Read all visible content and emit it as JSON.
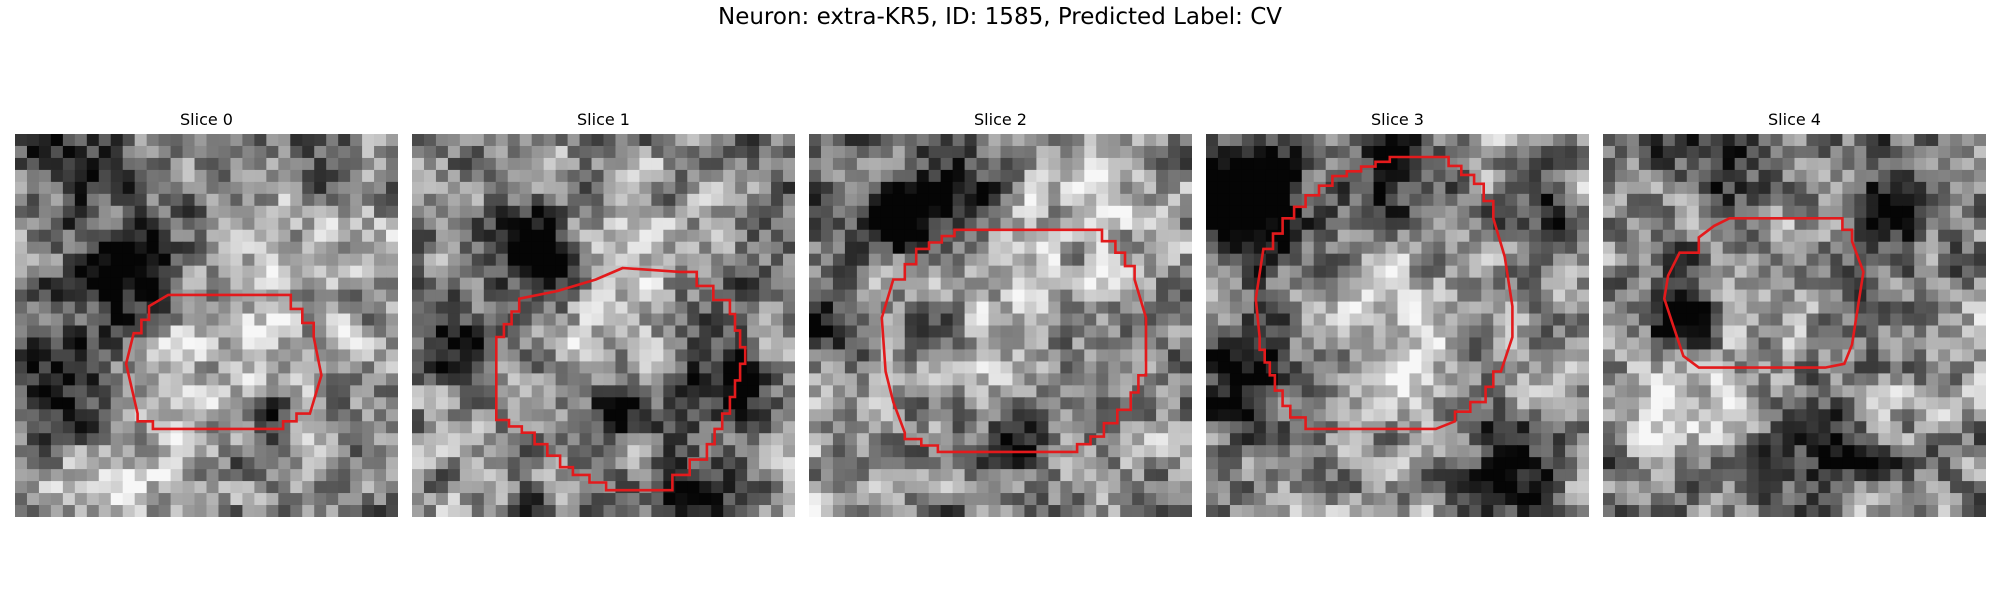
{
  "figure": {
    "title": "Neuron: extra-KR5, ID: 1585, Predicted Label: CV"
  },
  "colors": {
    "contour": "#e31a1c"
  },
  "panels": [
    {
      "title": "Slice 0",
      "seed": 11,
      "dark_blobs": [
        [
          0.3,
          0.35,
          0.12,
          0.75
        ],
        [
          0.1,
          0.65,
          0.18,
          0.55
        ],
        [
          0.67,
          0.73,
          0.06,
          0.55
        ],
        [
          0.15,
          0.1,
          0.15,
          0.3
        ]
      ],
      "bright_blobs": [
        [
          0.55,
          0.6,
          0.2,
          0.25
        ],
        [
          0.2,
          0.9,
          0.2,
          0.35
        ],
        [
          0.85,
          0.3,
          0.15,
          0.25
        ]
      ],
      "contour": [
        [
          0.4,
          0.42
        ],
        [
          0.69,
          0.42
        ],
        [
          0.78,
          0.53
        ],
        [
          0.8,
          0.63
        ],
        [
          0.77,
          0.73
        ],
        [
          0.7,
          0.77
        ],
        [
          0.4,
          0.77
        ],
        [
          0.32,
          0.73
        ],
        [
          0.29,
          0.6
        ],
        [
          0.31,
          0.52
        ],
        [
          0.35,
          0.45
        ]
      ]
    },
    {
      "title": "Slice 1",
      "seed": 23,
      "dark_blobs": [
        [
          0.32,
          0.3,
          0.1,
          0.75
        ],
        [
          0.08,
          0.55,
          0.1,
          0.55
        ],
        [
          0.82,
          0.65,
          0.1,
          0.6
        ],
        [
          0.72,
          0.95,
          0.12,
          0.5
        ],
        [
          0.55,
          0.72,
          0.08,
          0.4
        ]
      ],
      "bright_blobs": [
        [
          0.55,
          0.25,
          0.15,
          0.3
        ],
        [
          0.55,
          0.55,
          0.15,
          0.15
        ]
      ],
      "contour": [
        [
          0.55,
          0.35
        ],
        [
          0.7,
          0.36
        ],
        [
          0.83,
          0.47
        ],
        [
          0.87,
          0.6
        ],
        [
          0.83,
          0.73
        ],
        [
          0.77,
          0.85
        ],
        [
          0.68,
          0.93
        ],
        [
          0.55,
          0.93
        ],
        [
          0.42,
          0.87
        ],
        [
          0.32,
          0.78
        ],
        [
          0.22,
          0.73
        ],
        [
          0.22,
          0.53
        ],
        [
          0.28,
          0.43
        ],
        [
          0.38,
          0.41
        ],
        [
          0.48,
          0.38
        ]
      ]
    },
    {
      "title": "Slice 2",
      "seed": 37,
      "dark_blobs": [
        [
          0.22,
          0.2,
          0.1,
          0.8
        ],
        [
          0.4,
          0.15,
          0.1,
          0.45
        ],
        [
          0.05,
          0.5,
          0.1,
          0.45
        ],
        [
          0.55,
          0.8,
          0.08,
          0.4
        ]
      ],
      "bright_blobs": [
        [
          0.55,
          0.45,
          0.18,
          0.25
        ],
        [
          0.8,
          0.15,
          0.15,
          0.3
        ]
      ],
      "contour": [
        [
          0.38,
          0.25
        ],
        [
          0.73,
          0.25
        ],
        [
          0.8,
          0.31
        ],
        [
          0.85,
          0.38
        ],
        [
          0.88,
          0.48
        ],
        [
          0.88,
          0.63
        ],
        [
          0.84,
          0.72
        ],
        [
          0.77,
          0.79
        ],
        [
          0.7,
          0.83
        ],
        [
          0.38,
          0.83
        ],
        [
          0.25,
          0.78
        ],
        [
          0.22,
          0.7
        ],
        [
          0.2,
          0.62
        ],
        [
          0.19,
          0.48
        ],
        [
          0.22,
          0.38
        ],
        [
          0.28,
          0.3
        ]
      ]
    },
    {
      "title": "Slice 3",
      "seed": 51,
      "dark_blobs": [
        [
          0.1,
          0.18,
          0.14,
          0.9
        ],
        [
          0.1,
          0.65,
          0.14,
          0.5
        ],
        [
          0.5,
          0.1,
          0.12,
          0.55
        ],
        [
          0.8,
          0.85,
          0.12,
          0.5
        ],
        [
          0.88,
          0.2,
          0.08,
          0.4
        ]
      ],
      "bright_blobs": [
        [
          0.45,
          0.42,
          0.15,
          0.35
        ],
        [
          0.55,
          0.6,
          0.12,
          0.2
        ]
      ],
      "contour": [
        [
          0.48,
          0.06
        ],
        [
          0.6,
          0.06
        ],
        [
          0.7,
          0.13
        ],
        [
          0.75,
          0.22
        ],
        [
          0.78,
          0.32
        ],
        [
          0.8,
          0.45
        ],
        [
          0.8,
          0.53
        ],
        [
          0.77,
          0.62
        ],
        [
          0.73,
          0.7
        ],
        [
          0.65,
          0.75
        ],
        [
          0.6,
          0.77
        ],
        [
          0.3,
          0.77
        ],
        [
          0.22,
          0.71
        ],
        [
          0.18,
          0.63
        ],
        [
          0.14,
          0.53
        ],
        [
          0.13,
          0.43
        ],
        [
          0.15,
          0.3
        ],
        [
          0.2,
          0.22
        ],
        [
          0.26,
          0.16
        ],
        [
          0.33,
          0.11
        ]
      ]
    },
    {
      "title": "Slice 4",
      "seed": 67,
      "dark_blobs": [
        [
          0.2,
          0.5,
          0.08,
          0.8
        ],
        [
          0.75,
          0.2,
          0.1,
          0.65
        ],
        [
          0.6,
          0.82,
          0.12,
          0.45
        ],
        [
          0.3,
          0.1,
          0.08,
          0.45
        ]
      ],
      "bright_blobs": [
        [
          0.45,
          0.45,
          0.12,
          0.25
        ],
        [
          0.2,
          0.7,
          0.15,
          0.3
        ]
      ],
      "contour": [
        [
          0.33,
          0.22
        ],
        [
          0.6,
          0.22
        ],
        [
          0.65,
          0.28
        ],
        [
          0.68,
          0.36
        ],
        [
          0.65,
          0.55
        ],
        [
          0.63,
          0.6
        ],
        [
          0.58,
          0.61
        ],
        [
          0.25,
          0.61
        ],
        [
          0.21,
          0.58
        ],
        [
          0.18,
          0.49
        ],
        [
          0.16,
          0.43
        ],
        [
          0.17,
          0.37
        ],
        [
          0.2,
          0.31
        ],
        [
          0.25,
          0.27
        ],
        [
          0.29,
          0.24
        ]
      ]
    }
  ]
}
